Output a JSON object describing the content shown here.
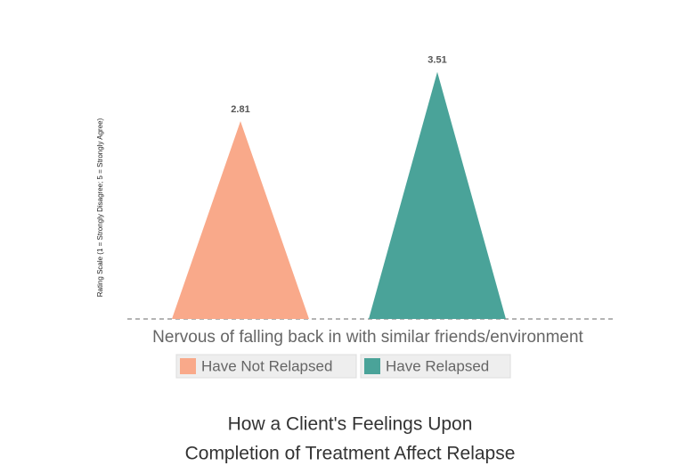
{
  "chart_data": {
    "type": "triangle",
    "title": [
      "How a Client's Feelings Upon",
      "Completion of Treatment Affect Relapse"
    ],
    "y_label": "Rating Scale (1 = Strongly Disagree; 5 = Strongly Agree)",
    "categories": [
      "Nervous of falling back in with similar friends/environment"
    ],
    "series": [
      {
        "name": "Have Not Relapsed",
        "color": "#f9a98a",
        "values": [
          2.81
        ]
      },
      {
        "name": "Have Relapsed",
        "color": "#4aa399",
        "values": [
          3.51
        ]
      }
    ],
    "ylim": [
      0,
      4
    ]
  }
}
